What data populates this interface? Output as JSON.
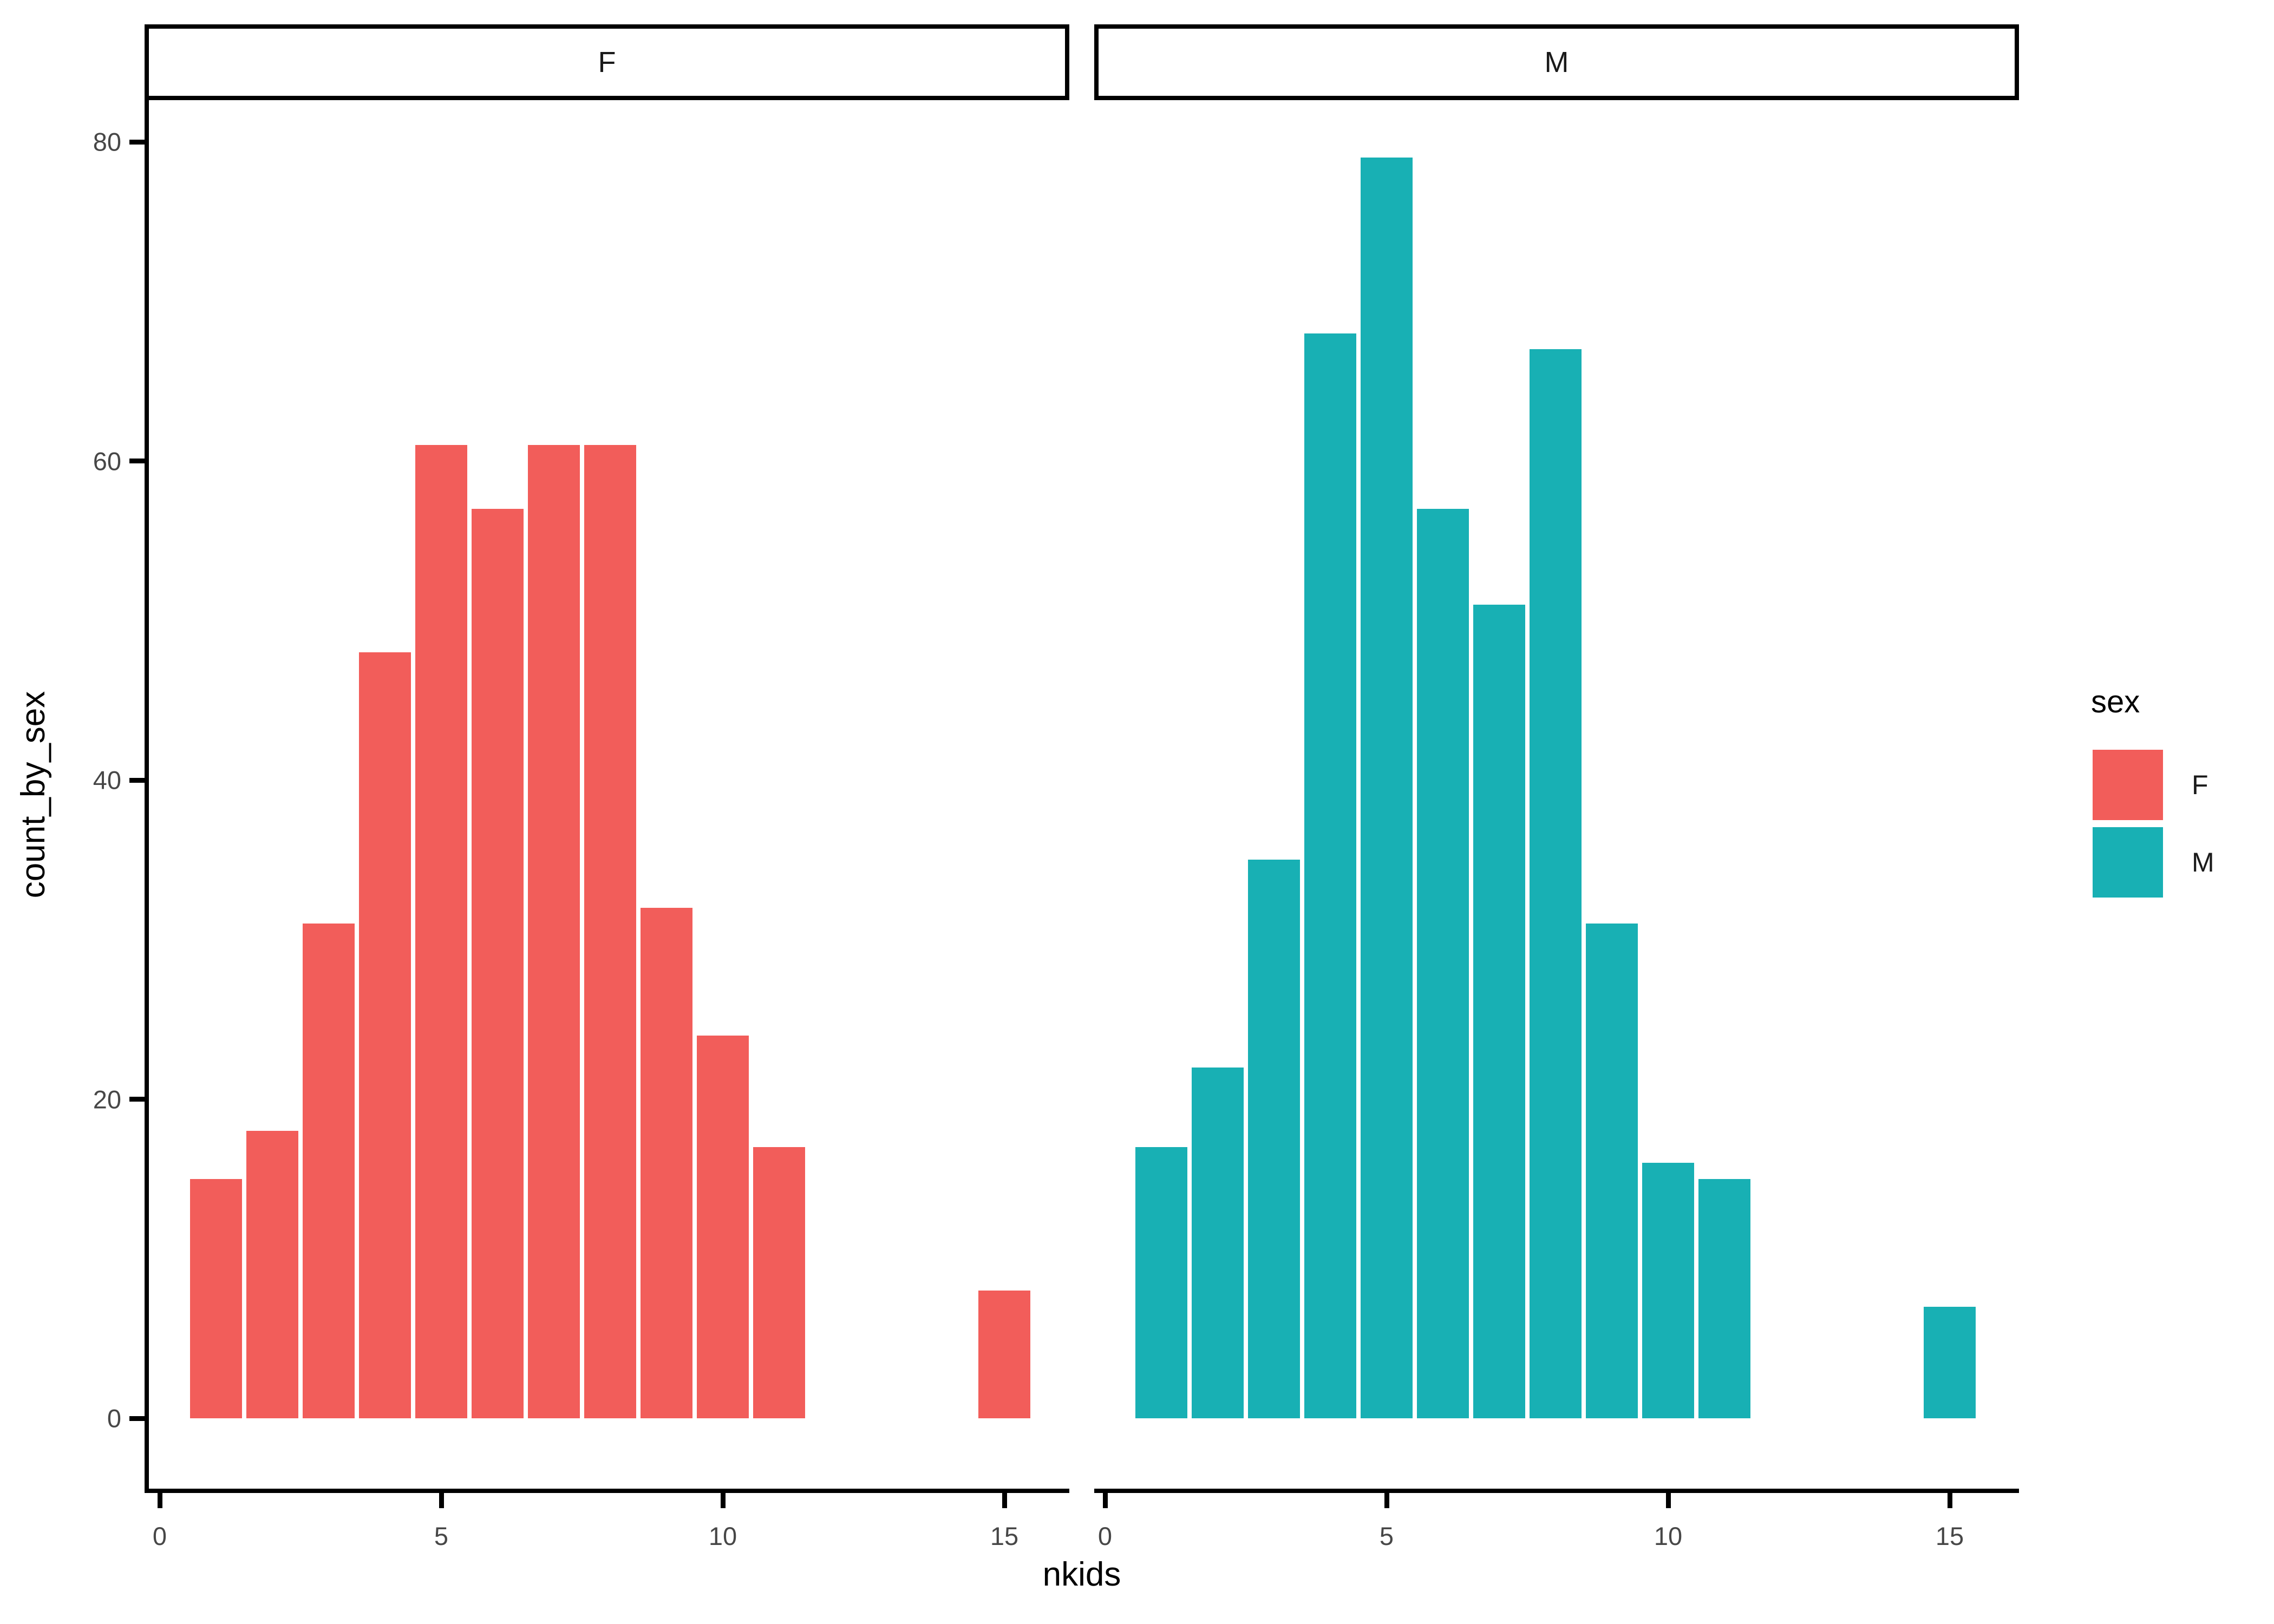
{
  "chart_data": {
    "type": "bar",
    "subtype": "faceted-histogram",
    "title": "",
    "facet_variable": "sex",
    "xlabel": "nkids",
    "ylabel": "count_by_sex",
    "x_ticks": [
      0,
      5,
      10,
      15
    ],
    "y_ticks": [
      0,
      20,
      40,
      60,
      80
    ],
    "xlim": [
      -0.25,
      16.25
    ],
    "ylim": [
      -4.4,
      82.6
    ],
    "binwidth": 1,
    "grid": false,
    "legend": {
      "title": "sex",
      "position": "right",
      "entries": [
        {
          "label": "F",
          "color": "#F25D5A"
        },
        {
          "label": "M",
          "color": "#18B0B4"
        }
      ]
    },
    "facets": [
      {
        "label": "F",
        "color": "#F25D5A",
        "x": [
          1,
          2,
          3,
          4,
          5,
          6,
          7,
          8,
          9,
          10,
          11,
          15
        ],
        "counts": [
          15,
          18,
          31,
          48,
          61,
          57,
          61,
          61,
          32,
          24,
          17,
          8
        ]
      },
      {
        "label": "M",
        "color": "#18B0B4",
        "x": [
          1,
          2,
          3,
          4,
          5,
          6,
          7,
          8,
          9,
          10,
          11,
          15
        ],
        "counts": [
          17,
          22,
          35,
          68,
          79,
          57,
          51,
          67,
          31,
          16,
          15,
          7
        ]
      }
    ]
  },
  "colors": {
    "background": "#ffffff",
    "axis_line": "#000000",
    "tick_label": "#474747",
    "strip_border": "#000000",
    "strip_fill": "#ffffff",
    "bar_f": "#F25D5A",
    "bar_m": "#18B0B4"
  }
}
